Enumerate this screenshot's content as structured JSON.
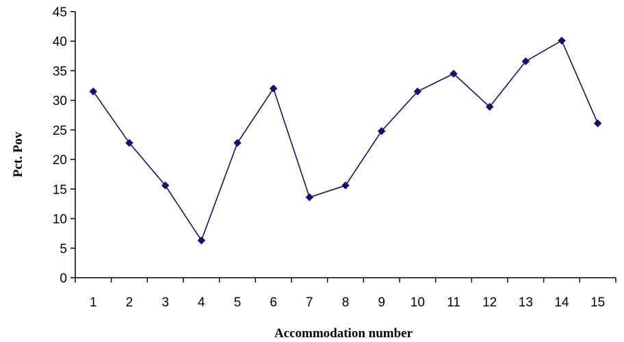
{
  "chart_data": {
    "type": "line",
    "title": "",
    "xlabel": "Accommodation number",
    "ylabel": "Pct. Pov",
    "categories": [
      "1",
      "2",
      "3",
      "4",
      "5",
      "6",
      "7",
      "8",
      "9",
      "10",
      "11",
      "12",
      "13",
      "14",
      "15"
    ],
    "y_ticks": [
      "0",
      "5",
      "10",
      "15",
      "20",
      "25",
      "30",
      "35",
      "40",
      "45"
    ],
    "ylim": [
      0,
      45
    ],
    "grid": false,
    "legend": "none",
    "series": [
      {
        "values": [
          31.5,
          22.8,
          15.6,
          6.3,
          22.8,
          32.0,
          13.6,
          15.6,
          24.8,
          31.5,
          34.5,
          28.9,
          36.6,
          40.1,
          26.1
        ],
        "color": "#0f0f6e",
        "marker": "diamond"
      }
    ]
  }
}
